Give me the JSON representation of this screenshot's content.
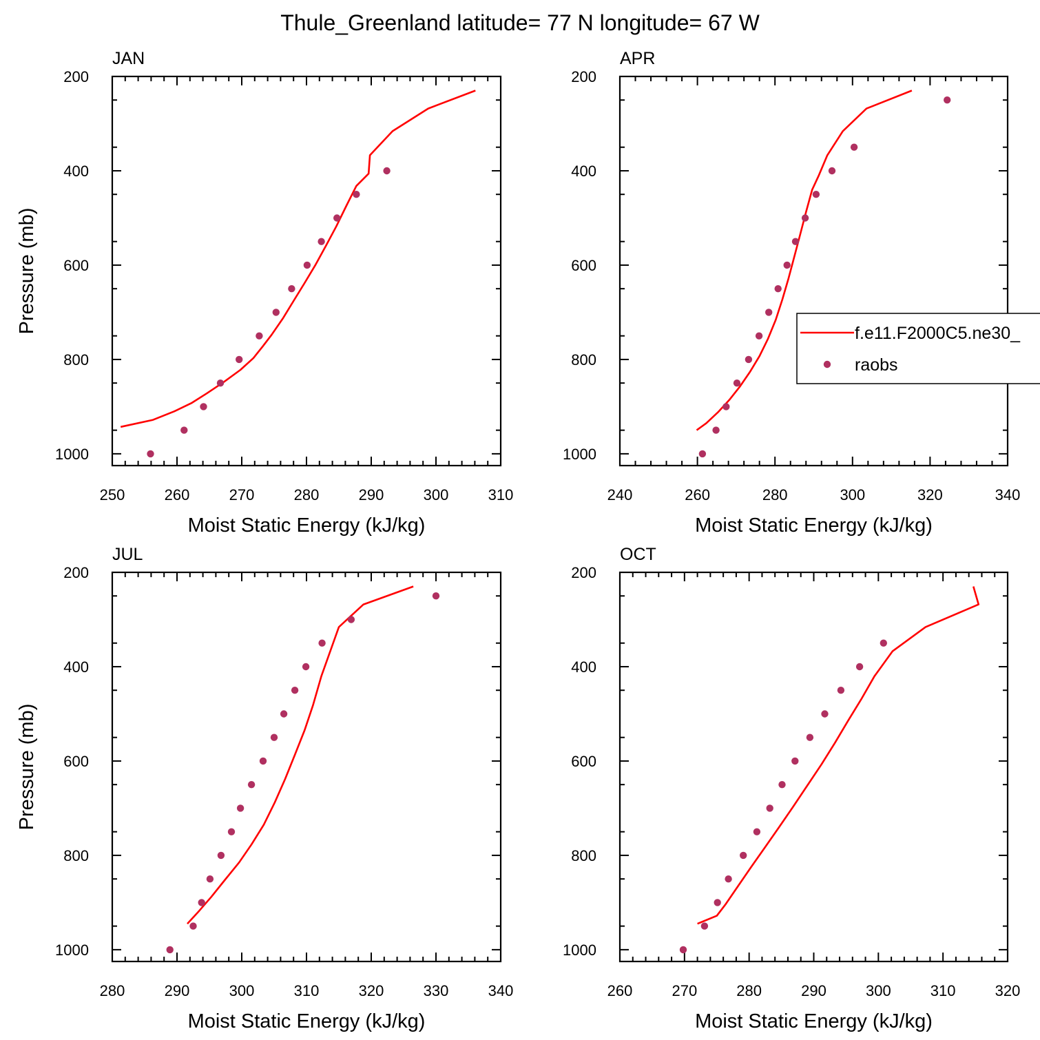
{
  "figure": {
    "title": "Thule_Greenland  latitude= 77 N longitude= 67 W",
    "legend": {
      "model_label": "f.e11.F2000C5.ne30_",
      "obs_label": "raobs",
      "model_color": "#ff0000",
      "obs_color": "#b03060"
    }
  },
  "chart_data": [
    {
      "type": "line",
      "title": "JAN",
      "xlabel": "Moist Static Energy (kJ/kg)",
      "ylabel": "Pressure (mb)",
      "xlim": [
        250,
        310
      ],
      "ylim": [
        200,
        1025
      ],
      "y_inverted": true,
      "xticks": [
        250,
        260,
        270,
        280,
        290,
        300,
        310
      ],
      "yticks": [
        200,
        400,
        600,
        800,
        1000
      ],
      "series": [
        {
          "name": "f.e11.F2000C5.ne30_",
          "style": "line",
          "points": [
            [
              251.3,
              943
            ],
            [
              256.3,
              928
            ],
            [
              259.6,
              910
            ],
            [
              262.3,
              892
            ],
            [
              264.6,
              872
            ],
            [
              267.2,
              848
            ],
            [
              269.8,
              822
            ],
            [
              271.8,
              797
            ],
            [
              273.2,
              773
            ],
            [
              274.6,
              748
            ],
            [
              276.4,
              712
            ],
            [
              278.0,
              676
            ],
            [
              279.7,
              638
            ],
            [
              281.4,
              599
            ],
            [
              283.0,
              559
            ],
            [
              284.6,
              518
            ],
            [
              286.1,
              476
            ],
            [
              287.7,
              432
            ],
            [
              289.6,
              406
            ],
            [
              289.8,
              367
            ],
            [
              293.3,
              316
            ],
            [
              298.8,
              268
            ],
            [
              306.1,
              230
            ]
          ]
        },
        {
          "name": "raobs",
          "style": "markers",
          "points": [
            [
              255.9,
              1000
            ],
            [
              261.1,
              950
            ],
            [
              264.1,
              900
            ],
            [
              266.7,
              850
            ],
            [
              269.6,
              800
            ],
            [
              272.7,
              750
            ],
            [
              275.3,
              700
            ],
            [
              277.7,
              650
            ],
            [
              280.1,
              600
            ],
            [
              282.3,
              550
            ],
            [
              284.7,
              500
            ],
            [
              287.7,
              450
            ],
            [
              292.4,
              400
            ]
          ]
        }
      ]
    },
    {
      "type": "line",
      "title": "APR",
      "xlabel": "Moist Static Energy (kJ/kg)",
      "ylabel": "",
      "xlim": [
        240,
        340
      ],
      "ylim": [
        200,
        1025
      ],
      "y_inverted": true,
      "xticks": [
        240,
        260,
        280,
        300,
        320,
        340
      ],
      "yticks": [
        200,
        400,
        600,
        800,
        1000
      ],
      "show_legend": true,
      "series": [
        {
          "name": "f.e11.F2000C5.ne30_",
          "style": "line",
          "points": [
            [
              259.8,
              950
            ],
            [
              262.3,
              935
            ],
            [
              265.3,
              912
            ],
            [
              268.2,
              886
            ],
            [
              270.9,
              858
            ],
            [
              273.5,
              827
            ],
            [
              276.0,
              793
            ],
            [
              278.2,
              756
            ],
            [
              280.2,
              716
            ],
            [
              281.9,
              673
            ],
            [
              283.5,
              628
            ],
            [
              285.0,
              582
            ],
            [
              286.5,
              535
            ],
            [
              288.0,
              488
            ],
            [
              289.6,
              440
            ],
            [
              291.3,
              410
            ],
            [
              293.5,
              367
            ],
            [
              297.5,
              316
            ],
            [
              303.6,
              268
            ],
            [
              315.3,
              230
            ]
          ]
        },
        {
          "name": "raobs",
          "style": "markers",
          "points": [
            [
              261.3,
              1000
            ],
            [
              264.8,
              950
            ],
            [
              267.4,
              900
            ],
            [
              270.2,
              850
            ],
            [
              273.2,
              800
            ],
            [
              275.9,
              750
            ],
            [
              278.4,
              700
            ],
            [
              280.8,
              650
            ],
            [
              283.1,
              600
            ],
            [
              285.3,
              550
            ],
            [
              287.8,
              500
            ],
            [
              290.6,
              450
            ],
            [
              294.7,
              400
            ],
            [
              300.4,
              350
            ],
            [
              324.4,
              250
            ]
          ]
        }
      ]
    },
    {
      "type": "line",
      "title": "JUL",
      "xlabel": "Moist Static Energy (kJ/kg)",
      "ylabel": "Pressure (mb)",
      "xlim": [
        280,
        340
      ],
      "ylim": [
        200,
        1025
      ],
      "y_inverted": true,
      "xticks": [
        280,
        290,
        300,
        310,
        320,
        330,
        340
      ],
      "yticks": [
        200,
        400,
        600,
        800,
        1000
      ],
      "series": [
        {
          "name": "f.e11.F2000C5.ne30_",
          "style": "line",
          "points": [
            [
              291.6,
              945
            ],
            [
              293.4,
              918
            ],
            [
              295.3,
              888
            ],
            [
              297.4,
              852
            ],
            [
              299.6,
              815
            ],
            [
              301.5,
              777
            ],
            [
              303.4,
              735
            ],
            [
              305.1,
              688
            ],
            [
              306.7,
              638
            ],
            [
              308.2,
              587
            ],
            [
              309.7,
              535
            ],
            [
              311.0,
              482
            ],
            [
              312.3,
              420
            ],
            [
              315.0,
              316
            ],
            [
              318.8,
              268
            ],
            [
              326.5,
              230
            ]
          ]
        },
        {
          "name": "raobs",
          "style": "markers",
          "points": [
            [
              288.9,
              1000
            ],
            [
              292.5,
              950
            ],
            [
              293.8,
              900
            ],
            [
              295.1,
              850
            ],
            [
              296.8,
              800
            ],
            [
              298.4,
              750
            ],
            [
              299.8,
              700
            ],
            [
              301.5,
              650
            ],
            [
              303.3,
              600
            ],
            [
              305.0,
              550
            ],
            [
              306.5,
              500
            ],
            [
              308.2,
              450
            ],
            [
              309.9,
              400
            ],
            [
              312.4,
              350
            ],
            [
              316.9,
              300
            ],
            [
              330.0,
              250
            ]
          ]
        }
      ]
    },
    {
      "type": "line",
      "title": "OCT",
      "xlabel": "Moist Static Energy (kJ/kg)",
      "ylabel": "",
      "xlim": [
        260,
        320
      ],
      "ylim": [
        200,
        1025
      ],
      "y_inverted": true,
      "xticks": [
        260,
        270,
        280,
        290,
        300,
        310,
        320
      ],
      "yticks": [
        200,
        400,
        600,
        800,
        1000
      ],
      "series": [
        {
          "name": "f.e11.F2000C5.ne30_",
          "style": "line",
          "points": [
            [
              272.0,
              945
            ],
            [
              275.0,
              928
            ],
            [
              276.4,
              903
            ],
            [
              278.3,
              865
            ],
            [
              280.3,
              825
            ],
            [
              282.4,
              784
            ],
            [
              284.6,
              741
            ],
            [
              286.8,
              697
            ],
            [
              289.0,
              652
            ],
            [
              291.2,
              607
            ],
            [
              293.3,
              561
            ],
            [
              295.3,
              515
            ],
            [
              297.4,
              468
            ],
            [
              299.4,
              420
            ],
            [
              302.2,
              367
            ],
            [
              307.3,
              316
            ],
            [
              315.5,
              268
            ],
            [
              314.7,
              230
            ]
          ]
        },
        {
          "name": "raobs",
          "style": "markers",
          "points": [
            [
              269.8,
              1000
            ],
            [
              273.1,
              950
            ],
            [
              275.1,
              900
            ],
            [
              276.8,
              850
            ],
            [
              279.1,
              800
            ],
            [
              281.2,
              750
            ],
            [
              283.2,
              700
            ],
            [
              285.1,
              650
            ],
            [
              287.1,
              600
            ],
            [
              289.4,
              550
            ],
            [
              291.7,
              500
            ],
            [
              294.2,
              450
            ],
            [
              297.1,
              400
            ],
            [
              300.8,
              350
            ]
          ]
        }
      ]
    }
  ]
}
